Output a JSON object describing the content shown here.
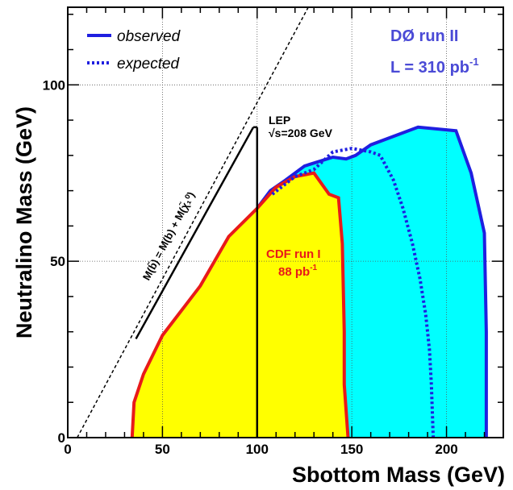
{
  "chart_data": {
    "type": "area",
    "xlabel": "Sbottom Mass (GeV)",
    "ylabel": "Neutralino Mass (GeV)",
    "xlim": [
      0,
      230
    ],
    "ylim": [
      0,
      122
    ],
    "xticks": [
      0,
      50,
      100,
      150,
      200
    ],
    "yticks": [
      0,
      50,
      100
    ],
    "xtick_labels": [
      "0",
      "50",
      "100",
      "150",
      "200"
    ],
    "ytick_labels": [
      "0",
      "50",
      "100"
    ],
    "grid": true,
    "legend_position": "top-left",
    "legend": [
      {
        "label": "observed",
        "style": "solid",
        "color": "#1f1fe0"
      },
      {
        "label": "expected",
        "style": "dotted",
        "color": "#1f1fe0"
      }
    ],
    "info_line1": "DØ run II",
    "info_line2_prefix": "L = 310 pb",
    "info_line2_sup": "-1",
    "series": [
      {
        "name": "observed",
        "fill": "#00ffff",
        "stroke": "#1f1fe0",
        "points": [
          [
            107,
            70
          ],
          [
            115,
            73
          ],
          [
            125,
            77
          ],
          [
            140,
            79.5
          ],
          [
            147,
            79
          ],
          [
            152,
            80
          ],
          [
            160,
            83
          ],
          [
            185,
            88
          ],
          [
            205,
            87
          ],
          [
            213,
            75
          ],
          [
            220,
            58
          ],
          [
            221,
            30
          ],
          [
            221,
            0
          ]
        ]
      },
      {
        "name": "expected",
        "stroke": "#1f1fe0",
        "points": [
          [
            108,
            69
          ],
          [
            120,
            74
          ],
          [
            130,
            76
          ],
          [
            140,
            81
          ],
          [
            150,
            82
          ],
          [
            160,
            81
          ],
          [
            165,
            80
          ],
          [
            172,
            73
          ],
          [
            177,
            65
          ],
          [
            182,
            55
          ],
          [
            186,
            45
          ],
          [
            189,
            35
          ],
          [
            191,
            25
          ],
          [
            192,
            15
          ],
          [
            193,
            0
          ]
        ]
      },
      {
        "name": "CDF run I",
        "fill": "#ffff00",
        "stroke": "#e81a1a",
        "points": [
          [
            34,
            0
          ],
          [
            35,
            10
          ],
          [
            40,
            18
          ],
          [
            50,
            29
          ],
          [
            60,
            36
          ],
          [
            70,
            43
          ],
          [
            85,
            57
          ],
          [
            100,
            65
          ],
          [
            110,
            71
          ],
          [
            120,
            74
          ],
          [
            130,
            75
          ],
          [
            138,
            69
          ],
          [
            143,
            68
          ],
          [
            145,
            55
          ],
          [
            146,
            30
          ],
          [
            146,
            15
          ],
          [
            148,
            0
          ]
        ]
      }
    ],
    "lep_limit": {
      "x": 100,
      "y_top": 88,
      "label_line1": "LEP",
      "label_line2": "√s=208 GeV"
    },
    "cdf_label_line1": "CDF run  I",
    "cdf_label_line2_prefix": "88 pb",
    "cdf_label_line2_sup": "-1",
    "kinematic_limit_offset": 5,
    "kinematic_label": "M(b̃) = M(b) + M(χ̃₁⁰)"
  }
}
